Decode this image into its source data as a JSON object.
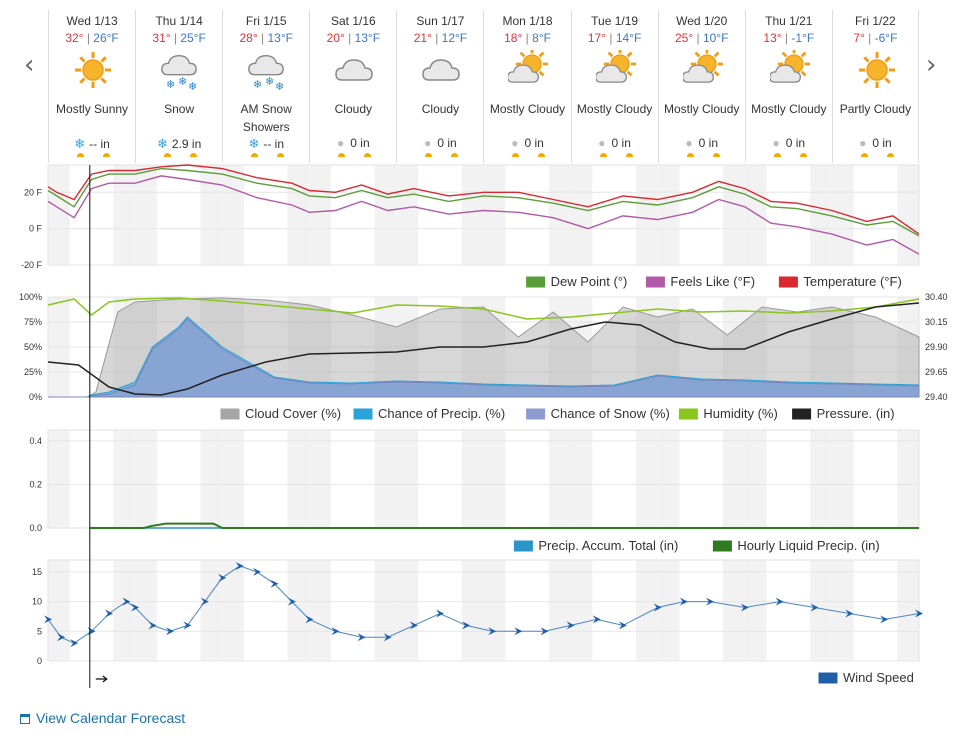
{
  "days": [
    {
      "name": "Wed 1/13",
      "hi": "32°",
      "lo": "26°F",
      "cond": "Mostly Sunny",
      "icon": "sun-icon",
      "precip": "-- in",
      "ptype": "snow"
    },
    {
      "name": "Thu 1/14",
      "hi": "31°",
      "lo": "25°F",
      "cond": "Snow",
      "icon": "snow-icon",
      "precip": "2.9 in",
      "ptype": "snow"
    },
    {
      "name": "Fri 1/15",
      "hi": "28°",
      "lo": "13°F",
      "cond": "AM Snow Showers",
      "icon": "snow-icon",
      "precip": "-- in",
      "ptype": "snow"
    },
    {
      "name": "Sat 1/16",
      "hi": "20°",
      "lo": "13°F",
      "cond": "Cloudy",
      "icon": "cloud-icon",
      "precip": "0 in",
      "ptype": "rain"
    },
    {
      "name": "Sun 1/17",
      "hi": "21°",
      "lo": "12°F",
      "cond": "Cloudy",
      "icon": "cloud-icon",
      "precip": "0 in",
      "ptype": "rain"
    },
    {
      "name": "Mon 1/18",
      "hi": "18°",
      "lo": "8°F",
      "cond": "Mostly Cloudy",
      "icon": "sun-cloud-icon",
      "precip": "0 in",
      "ptype": "rain"
    },
    {
      "name": "Tue 1/19",
      "hi": "17°",
      "lo": "14°F",
      "cond": "Mostly Cloudy",
      "icon": "sun-cloud-icon",
      "precip": "0 in",
      "ptype": "rain"
    },
    {
      "name": "Wed 1/20",
      "hi": "25°",
      "lo": "10°F",
      "cond": "Mostly Cloudy",
      "icon": "sun-cloud-icon",
      "precip": "0 in",
      "ptype": "rain"
    },
    {
      "name": "Thu 1/21",
      "hi": "13°",
      "lo": "-1°F",
      "cond": "Mostly Cloudy",
      "icon": "sun-cloud-icon",
      "precip": "0 in",
      "ptype": "rain"
    },
    {
      "name": "Fri 1/22",
      "hi": "7°",
      "lo": "-6°F",
      "cond": "Partly Cloudy",
      "icon": "sun-icon",
      "precip": "0 in",
      "ptype": "rain"
    }
  ],
  "nav": {
    "prev": "‹",
    "next": "›"
  },
  "link": {
    "calendar": "View Calendar Forecast"
  },
  "colors": {
    "dew": "#5a9e3a",
    "feels": "#b05aa8",
    "temp": "#d9282f",
    "cloud": "#a6a6a6",
    "precipChance": "#29a3d8",
    "snowChance": "#8e9bd0",
    "humidity": "#8ac61c",
    "pressure": "#222222",
    "accum": "#2a95c8",
    "hourly": "#2d7a1f",
    "wind": "#1f5fa8"
  },
  "chart_data": [
    {
      "type": "line",
      "ylim": [
        -20,
        35
      ],
      "yticks": [
        "20 F",
        "0 F",
        "-20 F"
      ],
      "x_days": [
        0,
        10
      ],
      "legend": [
        "Dew Point (°)",
        "Feels Like (°F)",
        "Temperature (°F)"
      ],
      "series": [
        {
          "name": "Temperature (°F)",
          "x": [
            0,
            0.1,
            0.3,
            0.5,
            0.7,
            1.0,
            1.3,
            1.6,
            2.0,
            2.4,
            2.8,
            3.0,
            3.3,
            3.6,
            3.9,
            4.2,
            4.6,
            5.0,
            5.4,
            5.8,
            6.2,
            6.6,
            7.0,
            7.4,
            7.7,
            8.0,
            8.3,
            8.6,
            9.0,
            9.4,
            9.7,
            10.0
          ],
          "y": [
            23,
            20,
            16,
            30,
            32,
            32,
            34,
            35,
            33,
            28,
            25,
            21,
            20,
            24,
            19,
            22,
            18,
            20,
            20,
            16,
            12,
            18,
            16,
            20,
            26,
            22,
            15,
            14,
            10,
            4,
            7,
            -3
          ]
        },
        {
          "name": "Dew Point (°)",
          "x": [
            0,
            0.1,
            0.3,
            0.5,
            0.7,
            1.0,
            1.3,
            1.6,
            2.0,
            2.4,
            2.8,
            3.0,
            3.3,
            3.6,
            3.9,
            4.2,
            4.6,
            5.0,
            5.4,
            5.8,
            6.2,
            6.6,
            7.0,
            7.4,
            7.7,
            8.0,
            8.3,
            8.6,
            9.0,
            9.4,
            9.7,
            10.0
          ],
          "y": [
            21,
            18,
            12,
            27,
            30,
            30,
            33,
            32,
            30,
            25,
            22,
            18,
            17,
            21,
            17,
            19,
            15,
            18,
            17,
            14,
            10,
            15,
            13,
            17,
            23,
            19,
            12,
            11,
            7,
            2,
            4,
            -4
          ]
        },
        {
          "name": "Feels Like (°F)",
          "x": [
            0,
            0.1,
            0.3,
            0.5,
            0.7,
            1.0,
            1.3,
            1.6,
            2.0,
            2.4,
            2.8,
            3.0,
            3.3,
            3.6,
            3.9,
            4.2,
            4.6,
            5.0,
            5.4,
            5.8,
            6.2,
            6.6,
            7.0,
            7.4,
            7.7,
            8.0,
            8.3,
            8.6,
            9.0,
            9.4,
            9.7,
            10.0
          ],
          "y": [
            15,
            12,
            6,
            22,
            25,
            25,
            29,
            27,
            24,
            17,
            13,
            9,
            10,
            15,
            10,
            12,
            8,
            10,
            9,
            6,
            0,
            7,
            5,
            9,
            16,
            12,
            3,
            1,
            -3,
            -9,
            -6,
            -14
          ]
        }
      ]
    },
    {
      "type": "area",
      "ylim_left": [
        0,
        100
      ],
      "yticks_left": [
        "100%",
        "75%",
        "50%",
        "25%",
        "0%"
      ],
      "ylim_right": [
        29.4,
        30.4
      ],
      "yticks_right": [
        "30.40",
        "30.15",
        "29.90",
        "29.65",
        "29.40"
      ],
      "legend": [
        "Cloud Cover (%)",
        "Chance of Precip. (%)",
        "Chance of Snow (%)",
        "Humidity (%)",
        "Pressure. (in)"
      ],
      "series": [
        {
          "name": "Cloud Cover (%)",
          "x": [
            0,
            0.45,
            0.55,
            0.8,
            1.0,
            1.5,
            2.0,
            2.5,
            3.0,
            3.5,
            4.0,
            4.5,
            5.0,
            5.4,
            5.8,
            6.2,
            6.6,
            7.0,
            7.4,
            7.8,
            8.2,
            8.6,
            9.0,
            9.5,
            10.0
          ],
          "y": [
            0,
            0,
            5,
            85,
            95,
            98,
            99,
            97,
            92,
            82,
            70,
            88,
            90,
            60,
            85,
            55,
            90,
            80,
            88,
            62,
            90,
            85,
            90,
            80,
            60
          ]
        },
        {
          "name": "Chance of Precip. (%)",
          "x": [
            0,
            0.45,
            0.5,
            0.7,
            1.0,
            1.2,
            1.5,
            1.6,
            1.8,
            2.0,
            2.3,
            2.6,
            3.0,
            3.5,
            4.0,
            4.5,
            5.0,
            5.5,
            6.0,
            6.5,
            7.0,
            7.5,
            8.0,
            8.5,
            9.0,
            9.5,
            10.0
          ],
          "y": [
            0,
            0,
            2,
            5,
            15,
            50,
            70,
            80,
            65,
            50,
            35,
            20,
            15,
            14,
            16,
            15,
            13,
            12,
            11,
            12,
            22,
            18,
            17,
            15,
            14,
            13,
            12
          ]
        },
        {
          "name": "Chance of Snow (%)",
          "x": [
            0,
            0.45,
            0.5,
            0.7,
            1.0,
            1.2,
            1.5,
            1.6,
            1.8,
            2.0,
            2.3,
            2.6,
            3.0,
            3.5,
            4.0,
            4.5,
            5.0,
            5.5,
            6.0,
            6.5,
            7.0,
            7.5,
            8.0,
            8.5,
            9.0,
            9.5,
            10.0
          ],
          "y": [
            0,
            0,
            1,
            3,
            12,
            48,
            68,
            78,
            63,
            48,
            33,
            19,
            14,
            13,
            15,
            14,
            12,
            11,
            10,
            11,
            21,
            17,
            16,
            14,
            13,
            12,
            11
          ]
        },
        {
          "name": "Humidity (%)",
          "x": [
            0,
            0.3,
            0.5,
            0.7,
            1.0,
            1.5,
            2.0,
            2.5,
            3.0,
            3.5,
            4.0,
            4.5,
            5.0,
            5.5,
            6.0,
            6.5,
            7.0,
            7.5,
            8.0,
            8.5,
            9.0,
            9.5,
            10.0
          ],
          "y": [
            92,
            98,
            82,
            95,
            98,
            99,
            96,
            92,
            88,
            84,
            92,
            91,
            88,
            78,
            80,
            84,
            88,
            85,
            86,
            84,
            86,
            90,
            98
          ]
        },
        {
          "name": "Pressure. (in)",
          "x": [
            0,
            0.35,
            0.7,
            1.0,
            1.3,
            1.6,
            2.0,
            2.5,
            3.0,
            3.5,
            4.0,
            4.5,
            5.0,
            5.5,
            6.0,
            6.4,
            6.8,
            7.2,
            7.6,
            8.0,
            8.5,
            9.0,
            9.5,
            10.0
          ],
          "y": [
            29.75,
            29.72,
            29.5,
            29.43,
            29.42,
            29.48,
            29.62,
            29.75,
            29.83,
            29.84,
            29.85,
            29.9,
            29.9,
            29.95,
            30.08,
            30.15,
            30.12,
            29.95,
            29.88,
            29.88,
            30.05,
            30.18,
            30.3,
            30.34
          ]
        }
      ]
    },
    {
      "type": "line",
      "ylim": [
        0,
        0.45
      ],
      "yticks": [
        "0.4",
        "0.2",
        "0.0"
      ],
      "legend": [
        "Precip. Accum. Total (in)",
        "Hourly Liquid Precip. (in)"
      ],
      "series": [
        {
          "name": "Hourly Liquid Precip. (in)",
          "x": [
            0.48,
            1.1,
            1.2,
            1.35,
            1.9,
            2.0,
            10.0
          ],
          "y": [
            0,
            0,
            0.01,
            0.02,
            0.02,
            0,
            0
          ]
        },
        {
          "name": "Precip. Accum. Total (in)",
          "x": [
            0.48,
            10.0
          ],
          "y": [
            0,
            0
          ]
        }
      ]
    },
    {
      "type": "line",
      "ylim": [
        0,
        17
      ],
      "yticks": [
        "15",
        "10",
        "5",
        "0"
      ],
      "legend": [
        "Wind Speed"
      ],
      "series": [
        {
          "name": "Wind Speed",
          "x": [
            0,
            0.15,
            0.3,
            0.5,
            0.7,
            0.9,
            1.0,
            1.2,
            1.4,
            1.6,
            1.8,
            2.0,
            2.2,
            2.4,
            2.6,
            2.8,
            3.0,
            3.3,
            3.6,
            3.9,
            4.2,
            4.5,
            4.8,
            5.1,
            5.4,
            5.7,
            6.0,
            6.3,
            6.6,
            7.0,
            7.3,
            7.6,
            8.0,
            8.4,
            8.8,
            9.2,
            9.6,
            10.0
          ],
          "y": [
            7,
            4,
            3,
            5,
            8,
            10,
            9,
            6,
            5,
            6,
            10,
            14,
            16,
            15,
            13,
            10,
            7,
            5,
            4,
            4,
            6,
            8,
            6,
            5,
            5,
            5,
            6,
            7,
            6,
            9,
            10,
            10,
            9,
            10,
            9,
            8,
            7,
            8
          ]
        }
      ]
    }
  ]
}
